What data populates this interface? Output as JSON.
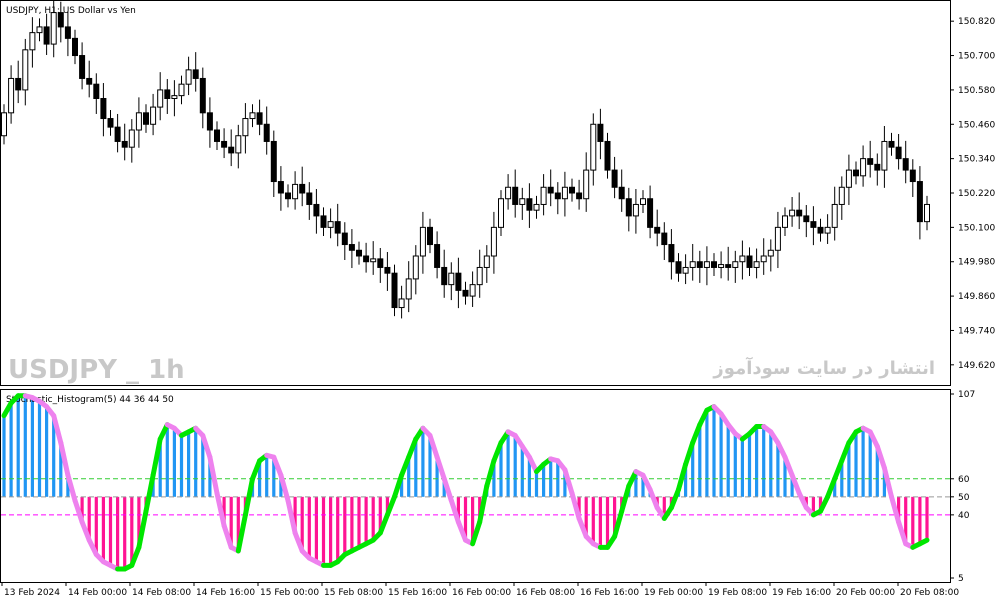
{
  "main_chart": {
    "title": "USDJPY, H1:  US Dollar vs Yen",
    "watermark_symbol": "USDJPY _ 1h",
    "watermark_site": "انتشار در سایت سودآموز",
    "price_labels": [
      "150.820",
      "150.700",
      "150.580",
      "150.460",
      "150.340",
      "150.220",
      "150.100",
      "149.980",
      "149.860",
      "149.740",
      "149.620"
    ],
    "candle_bull_color": "#ffffff",
    "candle_bear_color": "#000000"
  },
  "indicator": {
    "title": "Stochastic_Histogram(5) 44 36 44 50",
    "level_labels": [
      "107",
      "60",
      "50",
      "40",
      "5"
    ],
    "up_color": "#2196f3",
    "down_color": "#ff1493",
    "neutral_color": "#808080",
    "signal_up_color": "#00e600",
    "signal_down_color": "#ee82ee",
    "level_high_color": "#32cd32",
    "level_low_color": "#ff00ff"
  },
  "time_labels": [
    "13 Feb 2024",
    "14 Feb 00:00",
    "14 Feb 08:00",
    "14 Feb 16:00",
    "15 Feb 00:00",
    "15 Feb 08:00",
    "15 Feb 16:00",
    "16 Feb 00:00",
    "16 Feb 08:00",
    "16 Feb 16:00",
    "19 Feb 00:00",
    "19 Feb 08:00",
    "19 Feb 16:00",
    "20 Feb 00:00",
    "20 Feb 08:00"
  ],
  "chart_data": [
    {
      "type": "candlestick",
      "symbol": "USDJPY",
      "timeframe": "H1",
      "ylim": [
        149.56,
        150.88
      ],
      "closes": [
        150.5,
        150.62,
        150.58,
        150.72,
        150.78,
        150.8,
        150.74,
        150.85,
        150.8,
        150.76,
        150.7,
        150.62,
        150.6,
        150.55,
        150.48,
        150.45,
        150.4,
        150.38,
        150.44,
        150.5,
        150.46,
        150.52,
        150.58,
        150.55,
        150.56,
        150.6,
        150.65,
        150.62,
        150.5,
        150.44,
        150.4,
        150.38,
        150.36,
        150.42,
        150.48,
        150.5,
        150.46,
        150.4,
        150.26,
        150.22,
        150.2,
        150.25,
        150.22,
        150.18,
        150.14,
        150.1,
        150.12,
        150.08,
        150.04,
        150.02,
        150.0,
        149.98,
        149.99,
        149.96,
        149.94,
        149.82,
        149.85,
        149.92,
        150.0,
        150.1,
        150.04,
        149.96,
        149.9,
        149.94,
        149.88,
        149.86,
        149.9,
        149.96,
        150.0,
        150.1,
        150.2,
        150.24,
        150.18,
        150.2,
        150.16,
        150.18,
        150.24,
        150.22,
        150.2,
        150.24,
        150.22,
        150.2,
        150.3,
        150.46,
        150.4,
        150.3,
        150.24,
        150.2,
        150.14,
        150.18,
        150.2,
        150.1,
        150.08,
        150.04,
        149.98,
        149.94,
        149.96,
        149.98,
        149.96,
        149.98,
        149.96,
        149.97,
        149.96,
        149.98,
        150.0,
        149.96,
        149.98,
        150.0,
        150.02,
        150.1,
        150.14,
        150.16,
        150.14,
        150.12,
        150.1,
        150.08,
        150.1,
        150.18,
        150.24,
        150.3,
        150.28,
        150.34,
        150.32,
        150.3,
        150.4,
        150.38,
        150.34,
        150.3,
        150.26,
        150.12,
        150.18
      ]
    },
    {
      "type": "bar",
      "name": "",
      "ylim": [
        5,
        107
      ],
      "levels": [
        60,
        50,
        40
      ],
      "values": [
        95,
        102,
        106,
        106,
        105,
        103,
        100,
        95,
        80,
        62,
        48,
        36,
        26,
        18,
        14,
        12,
        10,
        10,
        12,
        22,
        42,
        62,
        82,
        90,
        88,
        84,
        86,
        88,
        84,
        72,
        52,
        34,
        22,
        20,
        40,
        60,
        70,
        73,
        72,
        62,
        48,
        30,
        20,
        16,
        14,
        12,
        12,
        14,
        18,
        20,
        22,
        24,
        26,
        30,
        40,
        50,
        62,
        72,
        82,
        88,
        84,
        72,
        60,
        48,
        36,
        26,
        24,
        36,
        56,
        70,
        80,
        86,
        84,
        78,
        72,
        64,
        68,
        71,
        70,
        65,
        52,
        38,
        28,
        24,
        22,
        22,
        28,
        42,
        56,
        64,
        62,
        54,
        44,
        38,
        44,
        54,
        68,
        80,
        90,
        98,
        100,
        96,
        90,
        85,
        82,
        85,
        89,
        89,
        86,
        80,
        72,
        62,
        52,
        44,
        40,
        42,
        50,
        60,
        70,
        80,
        86,
        88,
        86,
        78,
        66,
        50,
        36,
        24,
        22,
        24,
        26
      ]
    }
  ]
}
